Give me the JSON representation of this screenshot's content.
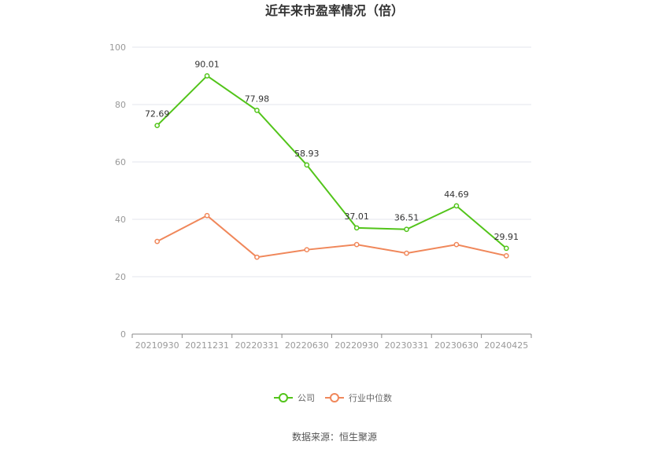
{
  "chart_data": {
    "type": "line",
    "title": "近年来市盈率情况（倍）",
    "categories": [
      "20210930",
      "20211231",
      "20220331",
      "20220630",
      "20220930",
      "20230331",
      "20230630",
      "20240425"
    ],
    "series": [
      {
        "name": "公司",
        "color": "#52c41a",
        "values": [
          72.69,
          90.01,
          77.98,
          58.93,
          37.01,
          36.51,
          44.69,
          29.91
        ],
        "labels": [
          "72.69",
          "90.01",
          "77.98",
          "58.93",
          "37.01",
          "36.51",
          "44.69",
          "29.91"
        ]
      },
      {
        "name": "行业中位数",
        "color": "#f0875a",
        "values": [
          32.3,
          41.3,
          26.8,
          29.4,
          31.2,
          28.2,
          31.2,
          27.3
        ]
      }
    ],
    "ylim": [
      0,
      100
    ],
    "yticks": [
      0,
      20,
      40,
      60,
      80,
      100
    ],
    "grid": true,
    "legend_position": "bottom",
    "source": "数据来源：恒生聚源"
  }
}
